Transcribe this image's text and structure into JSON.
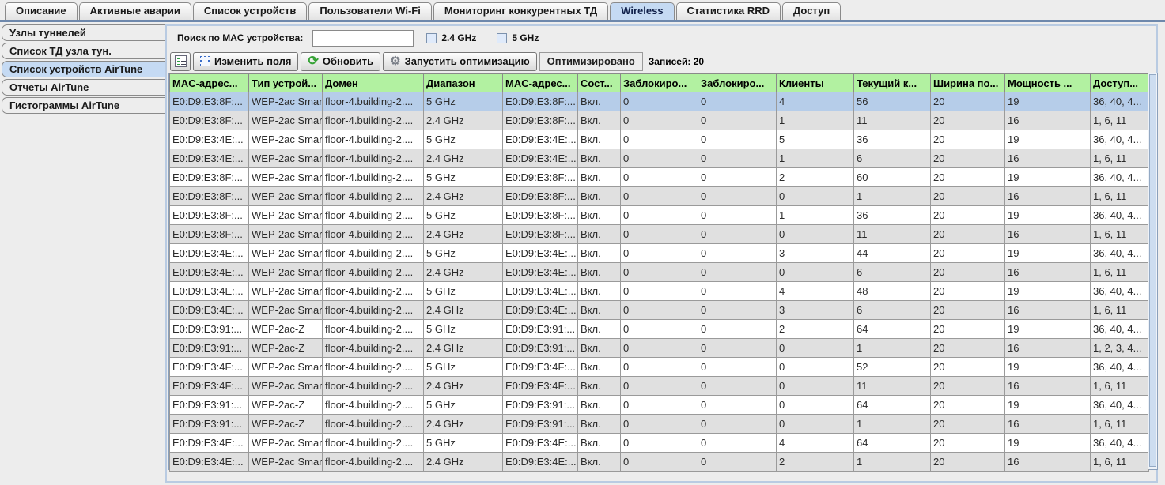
{
  "tab_bar": {
    "tabs": [
      {
        "label": "Описание",
        "active": false
      },
      {
        "label": "Активные аварии",
        "active": false
      },
      {
        "label": "Список устройств",
        "active": false
      },
      {
        "label": "Пользователи Wi-Fi",
        "active": false
      },
      {
        "label": "Мониторинг конкурентных ТД",
        "active": false
      },
      {
        "label": "Wireless",
        "active": true
      },
      {
        "label": "Статистика RRD",
        "active": false
      },
      {
        "label": "Доступ",
        "active": false
      }
    ]
  },
  "sidebar": {
    "items": [
      {
        "label": "Узлы туннелей",
        "selected": false
      },
      {
        "label": "Список ТД узла тун.",
        "selected": false
      },
      {
        "label": "Список устройств AirTune",
        "selected": true
      },
      {
        "label": "Отчеты AirTune",
        "selected": false
      },
      {
        "label": "Гистограммы AirTune",
        "selected": false
      }
    ]
  },
  "toolbar": {
    "search_label": "Поиск по MAC устройства:",
    "search_value": "",
    "checkbox_24": {
      "label": "2.4 GHz",
      "checked": false
    },
    "checkbox_5": {
      "label": "5 GHz",
      "checked": false
    },
    "icons": [
      "list-icon",
      "selection-frame-icon",
      "refresh-icon",
      "gear-icon"
    ],
    "edit_fields_label": "Изменить поля",
    "refresh_label": "Обновить",
    "run_optimization_label": "Запустить оптимизацию",
    "status_label": "Оптимизировано",
    "records_label": "Записей: 20"
  },
  "table": {
    "columns": [
      "MAC-адрес...",
      "Тип устрой...",
      "Домен",
      "Диапазон",
      "MAC-адрес...",
      "Сост...",
      "Заблокиро...",
      "Заблокиро...",
      "Клиенты",
      "Текущий к...",
      "Ширина по...",
      "Мощность ...",
      "Доступ..."
    ],
    "selected_row_index": 0,
    "rows": [
      [
        "E0:D9:E3:8F:...",
        "WEP-2ac Smart",
        "floor-4.building-2....",
        "5 GHz",
        "E0:D9:E3:8F:...",
        "Вкл.",
        "0",
        "0",
        "4",
        "56",
        "20",
        "19",
        "36, 40, 4..."
      ],
      [
        "E0:D9:E3:8F:...",
        "WEP-2ac Smart",
        "floor-4.building-2....",
        "2.4 GHz",
        "E0:D9:E3:8F:...",
        "Вкл.",
        "0",
        "0",
        "1",
        "11",
        "20",
        "16",
        "1, 6, 11"
      ],
      [
        "E0:D9:E3:4E:...",
        "WEP-2ac Smart",
        "floor-4.building-2....",
        "5 GHz",
        "E0:D9:E3:4E:...",
        "Вкл.",
        "0",
        "0",
        "5",
        "36",
        "20",
        "19",
        "36, 40, 4..."
      ],
      [
        "E0:D9:E3:4E:...",
        "WEP-2ac Smart",
        "floor-4.building-2....",
        "2.4 GHz",
        "E0:D9:E3:4E:...",
        "Вкл.",
        "0",
        "0",
        "1",
        "6",
        "20",
        "16",
        "1, 6, 11"
      ],
      [
        "E0:D9:E3:8F:...",
        "WEP-2ac Smart",
        "floor-4.building-2....",
        "5 GHz",
        "E0:D9:E3:8F:...",
        "Вкл.",
        "0",
        "0",
        "2",
        "60",
        "20",
        "19",
        "36, 40, 4..."
      ],
      [
        "E0:D9:E3:8F:...",
        "WEP-2ac Smart",
        "floor-4.building-2....",
        "2.4 GHz",
        "E0:D9:E3:8F:...",
        "Вкл.",
        "0",
        "0",
        "0",
        "1",
        "20",
        "16",
        "1, 6, 11"
      ],
      [
        "E0:D9:E3:8F:...",
        "WEP-2ac Smart",
        "floor-4.building-2....",
        "5 GHz",
        "E0:D9:E3:8F:...",
        "Вкл.",
        "0",
        "0",
        "1",
        "36",
        "20",
        "19",
        "36, 40, 4..."
      ],
      [
        "E0:D9:E3:8F:...",
        "WEP-2ac Smart",
        "floor-4.building-2....",
        "2.4 GHz",
        "E0:D9:E3:8F:...",
        "Вкл.",
        "0",
        "0",
        "0",
        "11",
        "20",
        "16",
        "1, 6, 11"
      ],
      [
        "E0:D9:E3:4E:...",
        "WEP-2ac Smart",
        "floor-4.building-2....",
        "5 GHz",
        "E0:D9:E3:4E:...",
        "Вкл.",
        "0",
        "0",
        "3",
        "44",
        "20",
        "19",
        "36, 40, 4..."
      ],
      [
        "E0:D9:E3:4E:...",
        "WEP-2ac Smart",
        "floor-4.building-2....",
        "2.4 GHz",
        "E0:D9:E3:4E:...",
        "Вкл.",
        "0",
        "0",
        "0",
        "6",
        "20",
        "16",
        "1, 6, 11"
      ],
      [
        "E0:D9:E3:4E:...",
        "WEP-2ac Smart",
        "floor-4.building-2....",
        "5 GHz",
        "E0:D9:E3:4E:...",
        "Вкл.",
        "0",
        "0",
        "4",
        "48",
        "20",
        "19",
        "36, 40, 4..."
      ],
      [
        "E0:D9:E3:4E:...",
        "WEP-2ac Smart",
        "floor-4.building-2....",
        "2.4 GHz",
        "E0:D9:E3:4E:...",
        "Вкл.",
        "0",
        "0",
        "3",
        "6",
        "20",
        "16",
        "1, 6, 11"
      ],
      [
        "E0:D9:E3:91:...",
        "WEP-2ac-Z",
        "floor-4.building-2....",
        "5 GHz",
        "E0:D9:E3:91:...",
        "Вкл.",
        "0",
        "0",
        "2",
        "64",
        "20",
        "19",
        "36, 40, 4..."
      ],
      [
        "E0:D9:E3:91:...",
        "WEP-2ac-Z",
        "floor-4.building-2....",
        "2.4 GHz",
        "E0:D9:E3:91:...",
        "Вкл.",
        "0",
        "0",
        "0",
        "1",
        "20",
        "16",
        "1, 2, 3, 4..."
      ],
      [
        "E0:D9:E3:4F:...",
        "WEP-2ac Smart",
        "floor-4.building-2....",
        "5 GHz",
        "E0:D9:E3:4F:...",
        "Вкл.",
        "0",
        "0",
        "0",
        "52",
        "20",
        "19",
        "36, 40, 4..."
      ],
      [
        "E0:D9:E3:4F:...",
        "WEP-2ac Smart",
        "floor-4.building-2....",
        "2.4 GHz",
        "E0:D9:E3:4F:...",
        "Вкл.",
        "0",
        "0",
        "0",
        "11",
        "20",
        "16",
        "1, 6, 11"
      ],
      [
        "E0:D9:E3:91:...",
        "WEP-2ac-Z",
        "floor-4.building-2....",
        "5 GHz",
        "E0:D9:E3:91:...",
        "Вкл.",
        "0",
        "0",
        "0",
        "64",
        "20",
        "19",
        "36, 40, 4..."
      ],
      [
        "E0:D9:E3:91:...",
        "WEP-2ac-Z",
        "floor-4.building-2....",
        "2.4 GHz",
        "E0:D9:E3:91:...",
        "Вкл.",
        "0",
        "0",
        "0",
        "1",
        "20",
        "16",
        "1, 6, 11"
      ],
      [
        "E0:D9:E3:4E:...",
        "WEP-2ac Smart",
        "floor-4.building-2....",
        "5 GHz",
        "E0:D9:E3:4E:...",
        "Вкл.",
        "0",
        "0",
        "4",
        "64",
        "20",
        "19",
        "36, 40, 4..."
      ],
      [
        "E0:D9:E3:4E:...",
        "WEP-2ac Smart",
        "floor-4.building-2....",
        "2.4 GHz",
        "E0:D9:E3:4E:...",
        "Вкл.",
        "0",
        "0",
        "2",
        "1",
        "20",
        "16",
        "1, 6, 11"
      ]
    ]
  },
  "colors": {
    "header_bg": "#b2f1a1",
    "selected_row_bg": "#b6cde9",
    "alt_row_bg": "#e0e0e0",
    "active_tab_bg": "#c5daf3",
    "accent_line": "#6e88ac"
  }
}
